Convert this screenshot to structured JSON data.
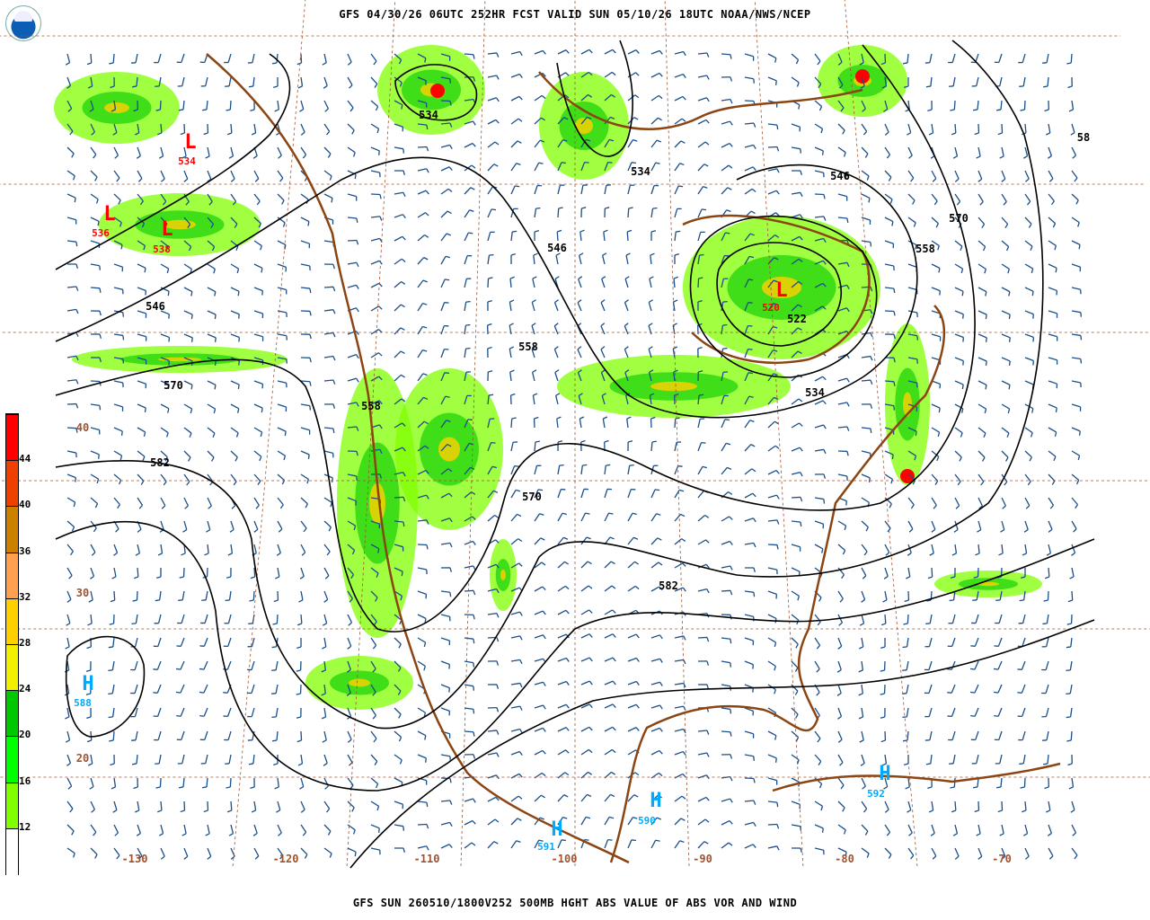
{
  "header": {
    "title": "GFS 04/30/26 06UTC 252HR FCST VALID SUN 05/10/26 18UTC NOAA/NWS/NCEP",
    "logo": "NOAA"
  },
  "footer": {
    "title": "GFS SUN 260510/1800V252 500MB HGHT ABS VALUE OF ABS VOR AND WIND"
  },
  "colorbar": {
    "ticks": [
      "44",
      "40",
      "36",
      "32",
      "28",
      "24",
      "20",
      "16",
      "12"
    ],
    "colors": [
      "#ff0000",
      "#f04000",
      "#cc8000",
      "#ffa050",
      "#ffd000",
      "#f0f000",
      "#00c800",
      "#00ff00",
      "#80ff00",
      "#ffffff"
    ]
  },
  "colors": {
    "height_contour": "#000000",
    "wind_barb": "#1a4f8a",
    "coastline": "#8b4513",
    "grid": "#a0522d",
    "high_center": "#00aaff",
    "low_center": "#ff0000"
  },
  "contour_labels": [
    {
      "text": "534",
      "lon": -148,
      "lat": 62
    },
    {
      "text": "546",
      "lon": -150,
      "lat": 48
    },
    {
      "text": "546",
      "lon": -115,
      "lat": 58
    },
    {
      "text": "558",
      "lon": -112,
      "lat": 52
    },
    {
      "text": "558",
      "lon": -130,
      "lat": 45
    },
    {
      "text": "570",
      "lon": -145,
      "lat": 42
    },
    {
      "text": "570",
      "lon": -110,
      "lat": 42
    },
    {
      "text": "570",
      "lon": -65,
      "lat": 58
    },
    {
      "text": "582",
      "lon": -148,
      "lat": 35
    },
    {
      "text": "582",
      "lon": -100,
      "lat": 35
    },
    {
      "text": "522",
      "lon": -80,
      "lat": 56
    },
    {
      "text": "534",
      "lon": -80,
      "lat": 50
    },
    {
      "text": "534",
      "lon": -100,
      "lat": 68
    },
    {
      "text": "546",
      "lon": -75,
      "lat": 65
    },
    {
      "text": "558",
      "lon": -65,
      "lat": 55
    },
    {
      "text": "58",
      "lon": -52,
      "lat": 62
    }
  ],
  "centers": [
    {
      "type": "H",
      "value": "588",
      "lon": -150,
      "lat": 22
    },
    {
      "type": "H",
      "value": "590",
      "lon": -97,
      "lat": 17
    },
    {
      "type": "H",
      "value": "591",
      "lon": -105,
      "lat": 15
    },
    {
      "type": "H",
      "value": "592",
      "lon": -75,
      "lat": 19
    },
    {
      "type": "L",
      "value": "534",
      "lon": -155,
      "lat": 60
    },
    {
      "type": "L",
      "value": "536",
      "lon": -165,
      "lat": 56
    },
    {
      "type": "L",
      "value": "538",
      "lon": -158,
      "lat": 55
    },
    {
      "type": "L",
      "value": "520",
      "lon": -82,
      "lat": 57
    }
  ],
  "grid_labels": {
    "lon": [
      "-130",
      "-120",
      "-110",
      "-100",
      "-90",
      "-80",
      "-70"
    ],
    "lat": [
      "40",
      "30",
      "20"
    ]
  }
}
